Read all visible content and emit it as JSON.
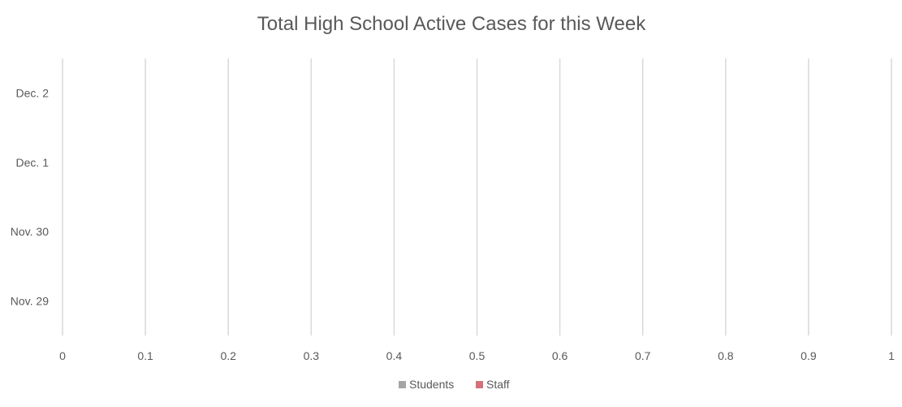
{
  "chart_data": {
    "type": "bar",
    "orientation": "horizontal",
    "title": "Total High School Active Cases for this Week",
    "categories": [
      "Nov. 29",
      "Nov. 30",
      "Dec. 1",
      "Dec. 2"
    ],
    "series": [
      {
        "name": "Students",
        "values": [
          0,
          0,
          0,
          0
        ],
        "color": "#a5a5a5"
      },
      {
        "name": "Staff",
        "values": [
          0,
          0,
          0,
          0
        ],
        "color": "#d4707a"
      }
    ],
    "xlim": [
      0,
      1
    ],
    "x_ticks": [
      "0",
      "0.1",
      "0.2",
      "0.3",
      "0.4",
      "0.5",
      "0.6",
      "0.7",
      "0.8",
      "0.9",
      "1"
    ],
    "grid": true,
    "legend_position": "bottom",
    "colors": {
      "gridline": "#d9d9d9",
      "text": "#595959"
    }
  }
}
